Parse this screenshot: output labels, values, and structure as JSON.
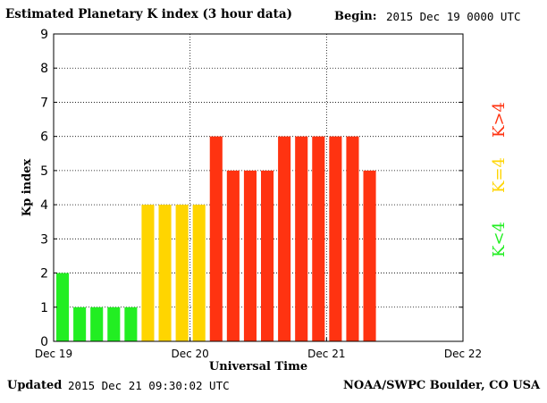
{
  "header": {
    "title": "Estimated Planetary K index (3 hour data)",
    "begin_label": "Begin:",
    "begin_value": "2015 Dec 19 0000 UTC"
  },
  "footer": {
    "updated_label": "Updated",
    "updated_value": "2015 Dec 21 09:30:02 UTC",
    "credit": "NOAA/SWPC Boulder, CO USA"
  },
  "chart_data": {
    "type": "bar",
    "title": "Estimated Planetary K index (3 hour data)",
    "xlabel": "Universal Time",
    "ylabel": "Kp index",
    "ylim": [
      0,
      9
    ],
    "yticks": [
      0,
      1,
      2,
      3,
      4,
      5,
      6,
      7,
      8,
      9
    ],
    "x_ticks": [
      "Dec 19",
      "Dec 20",
      "Dec 21",
      "Dec 22"
    ],
    "bin_hours": 3,
    "values": [
      2,
      1,
      1,
      1,
      1,
      4,
      4,
      4,
      4,
      6,
      5,
      5,
      5,
      6,
      6,
      6,
      6,
      6,
      5
    ],
    "grid": true,
    "thresholds": [
      {
        "label": "K<4",
        "color": "#22ee22"
      },
      {
        "label": "K=4",
        "color": "#ffd500"
      },
      {
        "label": "K>4",
        "color": "#ff3311"
      }
    ],
    "legend_placement": "right"
  }
}
